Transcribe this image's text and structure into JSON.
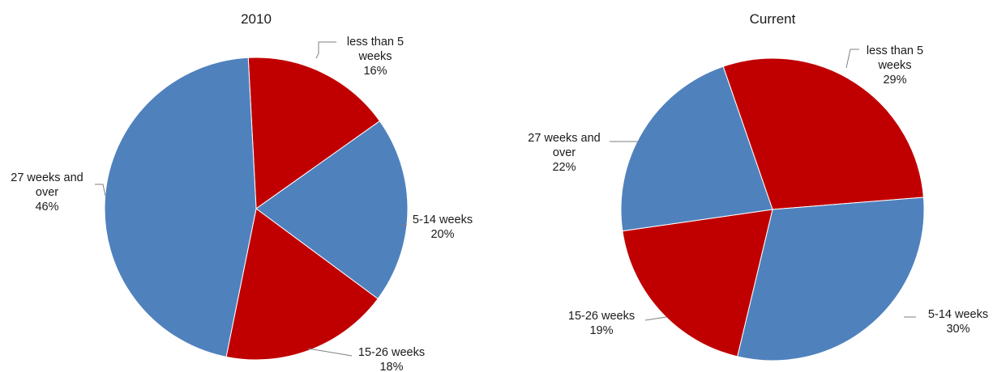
{
  "chart_data": [
    {
      "type": "pie",
      "title": "2010",
      "start_angle_deg": -3,
      "categories": [
        "less than 5 weeks",
        "5-14 weeks",
        "15-26 weeks",
        "27 weeks and over"
      ],
      "values": [
        16,
        20,
        18,
        46
      ],
      "value_labels": [
        "16%",
        "20%",
        "18%",
        "46%"
      ],
      "label_lines": [
        [
          "less than 5",
          "weeks"
        ],
        [
          "5-14 weeks"
        ],
        [
          "15-26 weeks"
        ],
        [
          "27 weeks and",
          "over"
        ]
      ],
      "colors": [
        "#c00000",
        "#4f81bd",
        "#c00000",
        "#4f81bd"
      ],
      "legend": "none"
    },
    {
      "type": "pie",
      "title": "Current",
      "start_angle_deg": -19,
      "categories": [
        "less than 5 weeks",
        "5-14 weeks",
        "15-26 weeks",
        "27 weeks and over"
      ],
      "values": [
        29,
        30,
        19,
        22
      ],
      "value_labels": [
        "29%",
        "30%",
        "19%",
        "22%"
      ],
      "label_lines": [
        [
          "less than 5",
          "weeks"
        ],
        [
          "5-14 weeks"
        ],
        [
          "15-26 weeks"
        ],
        [
          "27 weeks and",
          "over"
        ]
      ],
      "colors": [
        "#c00000",
        "#4f81bd",
        "#c00000",
        "#4f81bd"
      ],
      "legend": "none"
    }
  ]
}
